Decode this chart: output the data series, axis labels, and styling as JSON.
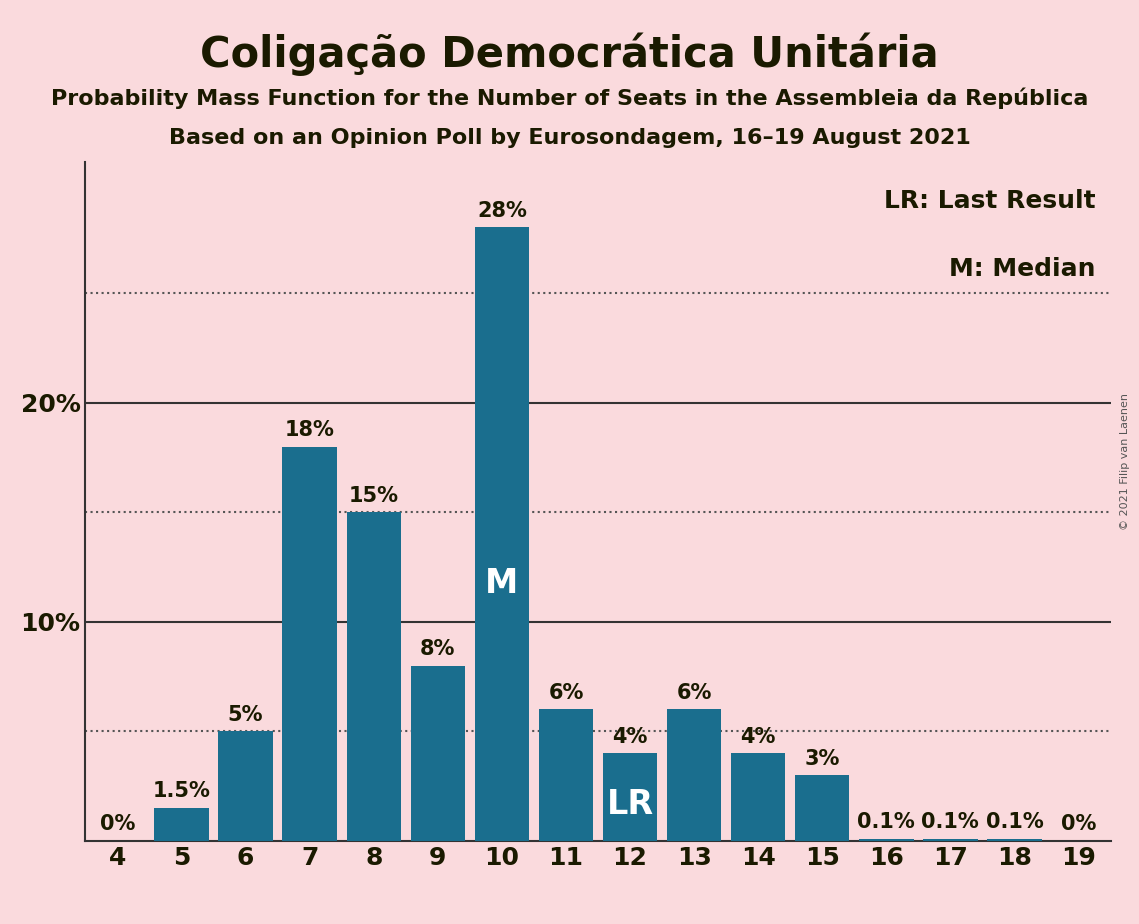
{
  "title": "Coligação Democrática Unitária",
  "subtitle1": "Probability Mass Function for the Number of Seats in the Assembleia da República",
  "subtitle2": "Based on an Opinion Poll by Eurosondagem, 16–19 August 2021",
  "copyright": "© 2021 Filip van Laenen",
  "legend_lr": "LR: Last Result",
  "legend_m": "M: Median",
  "seats": [
    4,
    5,
    6,
    7,
    8,
    9,
    10,
    11,
    12,
    13,
    14,
    15,
    16,
    17,
    18,
    19
  ],
  "probabilities": [
    0.0,
    1.5,
    5.0,
    18.0,
    15.0,
    8.0,
    28.0,
    6.0,
    4.0,
    6.0,
    4.0,
    3.0,
    0.1,
    0.1,
    0.1,
    0.0
  ],
  "bar_color": "#1a6e8e",
  "background_color": "#fadadd",
  "median_seat": 10,
  "lr_seat": 12,
  "yticks": [
    10,
    20
  ],
  "solid_lines": [
    10,
    20
  ],
  "dotted_lines": [
    5,
    15,
    25
  ],
  "ylim": [
    0,
    31
  ],
  "title_fontsize": 30,
  "subtitle_fontsize": 16,
  "tick_fontsize": 18,
  "bar_label_fontsize": 15,
  "annotation_fontsize": 24,
  "legend_fontsize": 18,
  "copyright_fontsize": 8
}
